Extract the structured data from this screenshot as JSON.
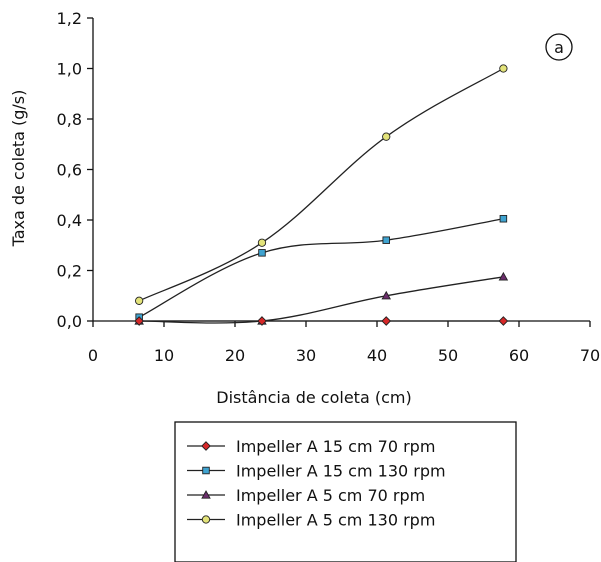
{
  "chart_data": {
    "type": "line",
    "title": "",
    "panel_label": "a",
    "xlabel": "Distância de coleta (cm)",
    "ylabel": "Taxa de coleta (g/s)",
    "xlim": [
      0,
      70
    ],
    "ylim": [
      0,
      1.2
    ],
    "x_ticks": [
      0,
      10,
      20,
      30,
      40,
      50,
      60,
      70
    ],
    "y_ticks": [
      0.0,
      0.2,
      0.4,
      0.6,
      0.8,
      1.0,
      1.2
    ],
    "x_tick_labels": [
      "0",
      "10",
      "20",
      "30",
      "40",
      "50",
      "60",
      "70"
    ],
    "y_tick_labels": [
      "0,0",
      "0,2",
      "0,4",
      "0,6",
      "0,8",
      "1,0",
      "1,2"
    ],
    "grid": false,
    "legend_position": "bottom",
    "x": [
      6.5,
      23.8,
      41.3,
      57.8
    ],
    "series": [
      {
        "name": "Impeller A 15 cm 70 rpm",
        "values": [
          0.0,
          0.0,
          0.0,
          0.0
        ],
        "marker": "diamond",
        "color": "#d62728"
      },
      {
        "name": "Impeller A 15 cm 130 rpm",
        "values": [
          0.015,
          0.27,
          0.32,
          0.405
        ],
        "marker": "square",
        "color": "#3fa3d0"
      },
      {
        "name": "Impeller A 5 cm 70 rpm",
        "values": [
          0.0,
          0.0,
          0.1,
          0.175
        ],
        "marker": "triangle",
        "color": "#6b2d6b"
      },
      {
        "name": "Impeller A 5 cm 130 rpm",
        "values": [
          0.08,
          0.31,
          0.73,
          1.0
        ],
        "marker": "circle",
        "color": "#e3e37a"
      }
    ]
  }
}
